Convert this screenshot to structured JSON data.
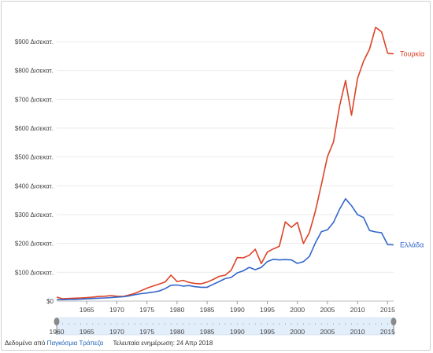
{
  "chart_data": {
    "type": "line",
    "x": [
      1960,
      1961,
      1962,
      1963,
      1964,
      1965,
      1966,
      1967,
      1968,
      1969,
      1970,
      1971,
      1972,
      1973,
      1974,
      1975,
      1976,
      1977,
      1978,
      1979,
      1980,
      1981,
      1982,
      1983,
      1984,
      1985,
      1986,
      1987,
      1988,
      1989,
      1990,
      1991,
      1992,
      1993,
      1994,
      1995,
      1996,
      1997,
      1998,
      1999,
      2000,
      2001,
      2002,
      2003,
      2004,
      2005,
      2006,
      2007,
      2008,
      2009,
      2010,
      2011,
      2012,
      2013,
      2014,
      2015,
      2016
    ],
    "series": [
      {
        "name": "Τουρκία",
        "color": "#dc4326",
        "values": [
          14,
          8,
          9,
          10,
          11,
          12,
          14,
          16,
          17,
          19,
          17,
          16,
          21,
          27,
          36,
          45,
          52,
          59,
          66,
          90,
          68,
          72,
          65,
          61,
          60,
          66,
          75,
          86,
          90,
          107,
          151,
          150,
          159,
          180,
          130,
          170,
          181,
          190,
          275,
          256,
          273,
          200,
          238,
          312,
          405,
          501,
          552,
          675,
          765,
          645,
          772,
          832,
          874,
          950,
          934,
          860,
          858
        ]
      },
      {
        "name": "Ελλάδα",
        "color": "#3366cc",
        "values": [
          5,
          5,
          6,
          6,
          7,
          8,
          9,
          10,
          11,
          12,
          14,
          15,
          18,
          22,
          26,
          28,
          31,
          35,
          43,
          55,
          56,
          52,
          54,
          50,
          48,
          48,
          58,
          68,
          78,
          82,
          98,
          105,
          117,
          109,
          117,
          137,
          145,
          143,
          144,
          143,
          131,
          137,
          155,
          202,
          241,
          247,
          273,
          318,
          355,
          331,
          300,
          290,
          245,
          240,
          237,
          196,
          195
        ]
      }
    ],
    "y_ticks": [
      "$0",
      "$100 Δισεκατ.",
      "$200 Δισεκατ.",
      "$300 Δισεκατ.",
      "$400 Δισεκατ.",
      "$500 Δισεκατ.",
      "$600 Δισεκατ.",
      "$700 Δισεκατ.",
      "$800 Δισεκατ.",
      "$900 Δισεκατ."
    ],
    "y_tick_values": [
      0,
      100,
      200,
      300,
      400,
      500,
      600,
      700,
      800,
      900
    ],
    "x_ticks": [
      "1965",
      "1970",
      "1975",
      "1980",
      "1985",
      "1990",
      "1995",
      "2000",
      "2005",
      "2010",
      "2015"
    ],
    "x_tick_values": [
      1965,
      1970,
      1975,
      1980,
      1985,
      1990,
      1995,
      2000,
      2005,
      2010,
      2015
    ],
    "slider_ticks": [
      "1960",
      "1965",
      "1970",
      "1975",
      "1980",
      "1985",
      "1990",
      "1995",
      "2000",
      "2005",
      "2010",
      "2015"
    ],
    "ylim": [
      0,
      960
    ],
    "xlim": [
      1960,
      2016
    ],
    "grid": true,
    "legend_placement": "end-of-line labels"
  },
  "footer": {
    "source_prefix": "Δεδομένα από",
    "source_link": "Παγκόσμια Τράπεζα",
    "updated": "Τελευταία ενημέρωση: 24 Απρ 2018"
  }
}
